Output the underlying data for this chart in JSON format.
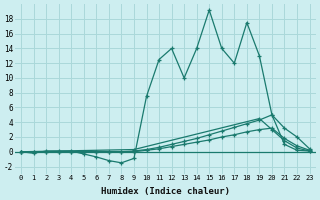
{
  "xlabel": "Humidex (Indice chaleur)",
  "background_color": "#cdeef0",
  "grid_color": "#aad8da",
  "line_color": "#1a7a6e",
  "xlim": [
    -0.5,
    23.5
  ],
  "ylim": [
    -3,
    20
  ],
  "xticks": [
    0,
    1,
    2,
    3,
    4,
    5,
    6,
    7,
    8,
    9,
    10,
    11,
    12,
    13,
    14,
    15,
    16,
    17,
    18,
    19,
    20,
    21,
    22,
    23
  ],
  "yticks": [
    -2,
    0,
    2,
    4,
    6,
    8,
    10,
    12,
    14,
    16,
    18
  ],
  "series": {
    "spike_x": [
      0,
      1,
      2,
      3,
      4,
      5,
      6,
      7,
      8,
      9,
      10,
      11,
      12,
      13,
      14,
      15,
      16,
      17,
      18,
      19,
      20,
      21,
      22,
      23
    ],
    "spike_y": [
      0,
      -0.2,
      0.1,
      0.1,
      0.1,
      -0.3,
      -0.7,
      -1.2,
      -1.5,
      -0.9,
      7.5,
      12.5,
      14.0,
      10.0,
      14.0,
      19.2,
      14.0,
      12.0,
      17.5,
      13.0,
      5.0,
      1.0,
      0.2,
      0.1
    ],
    "ramp1_x": [
      0,
      1,
      2,
      3,
      4,
      5,
      6,
      7,
      8,
      9,
      10,
      11,
      12,
      13,
      14,
      15,
      16,
      17,
      18,
      19,
      20,
      21,
      22,
      23
    ],
    "ramp1_y": [
      0,
      0,
      0,
      0,
      0,
      0,
      0,
      0,
      0,
      0.1,
      0.3,
      0.6,
      1.0,
      1.4,
      1.8,
      2.3,
      2.8,
      3.3,
      3.8,
      4.3,
      5.0,
      3.2,
      2.0,
      0.4
    ],
    "ramp2_x": [
      0,
      1,
      2,
      3,
      4,
      5,
      6,
      7,
      8,
      9,
      10,
      11,
      12,
      13,
      14,
      15,
      16,
      17,
      18,
      19,
      20,
      21,
      22,
      23
    ],
    "ramp2_y": [
      0,
      0,
      0,
      0,
      0,
      0,
      0,
      0,
      0,
      0.0,
      0.2,
      0.4,
      0.7,
      1.0,
      1.3,
      1.6,
      2.0,
      2.3,
      2.7,
      3.0,
      3.2,
      1.8,
      0.8,
      0.2
    ],
    "ramp3_x": [
      0,
      9,
      19,
      20,
      21,
      22,
      23
    ],
    "ramp3_y": [
      0,
      0.3,
      4.5,
      3.0,
      1.5,
      0.5,
      0.1
    ]
  }
}
